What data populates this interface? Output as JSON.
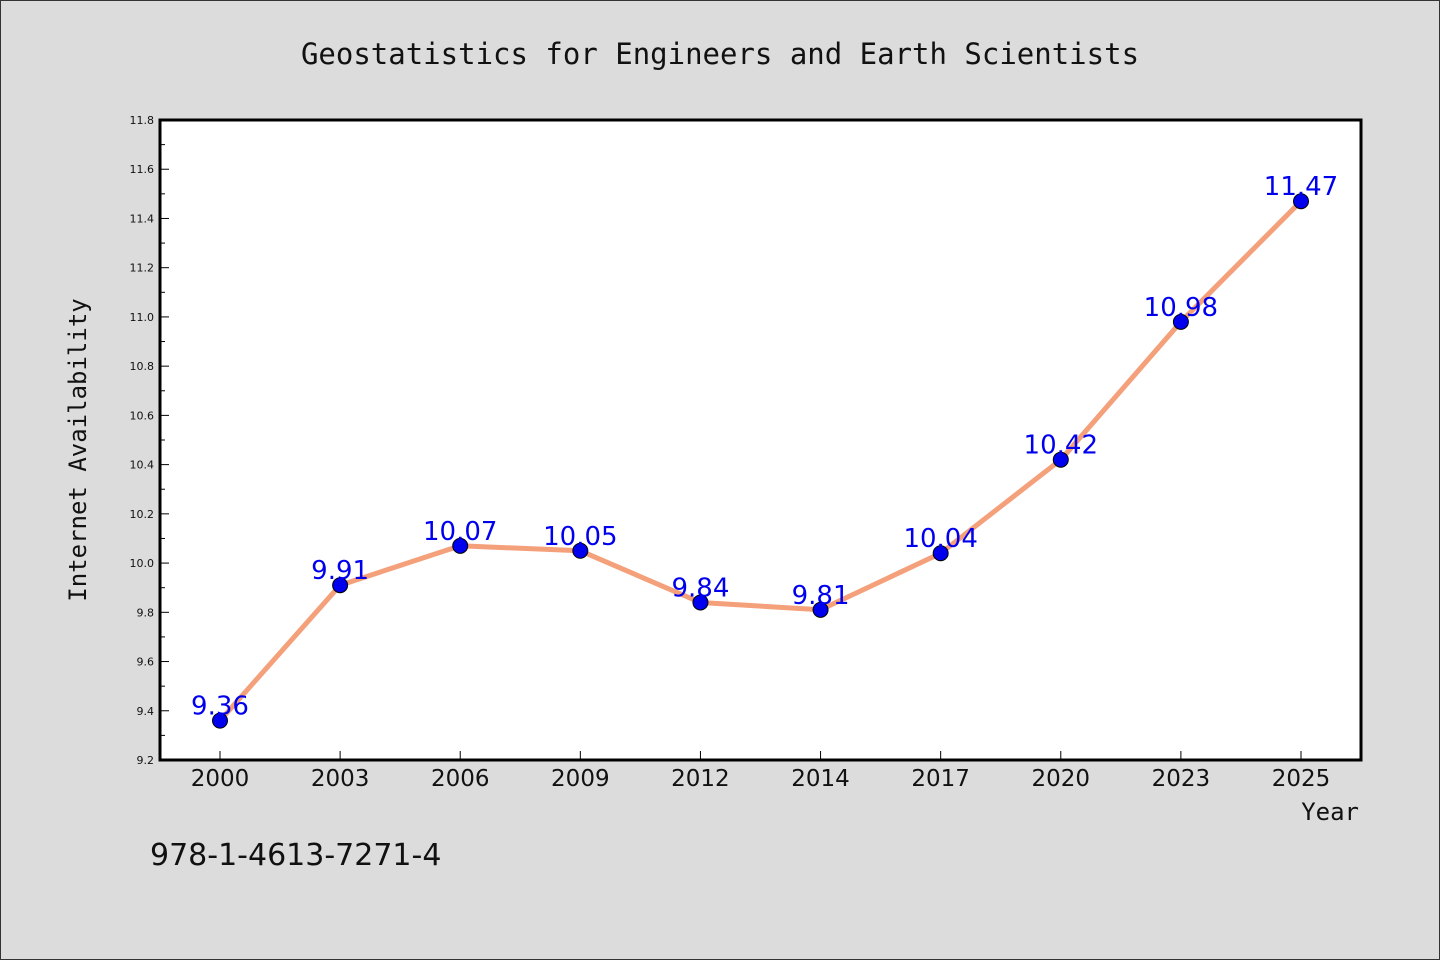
{
  "chart_data": {
    "type": "line",
    "title": "Geostatistics for Engineers and Earth Scientists",
    "xlabel": "Year",
    "ylabel": "Internet Availability",
    "categories": [
      "2000",
      "2003",
      "2006",
      "2009",
      "2012",
      "2014",
      "2017",
      "2020",
      "2023",
      "2025"
    ],
    "series": [
      {
        "values": [
          9.36,
          9.91,
          10.07,
          10.05,
          9.84,
          9.81,
          10.04,
          10.42,
          10.98,
          11.47
        ],
        "line_color": "#f4a07a",
        "marker_color": "#0000ee"
      }
    ],
    "data_labels": [
      "9.36",
      "9.91",
      "10.07",
      "10.05",
      "9.84",
      "9.81",
      "10.04",
      "10.42",
      "10.98",
      "11.47"
    ],
    "ylim": [
      9.2,
      11.8
    ],
    "yticks": [
      "9.2",
      "9.4",
      "9.6",
      "9.8",
      "10.0",
      "10.2",
      "10.4",
      "10.6",
      "10.8",
      "11.0",
      "11.2",
      "11.4",
      "11.6",
      "11.8"
    ],
    "grid": false,
    "legend": "none"
  },
  "footer": {
    "isbn": "978-1-4613-7271-4"
  }
}
